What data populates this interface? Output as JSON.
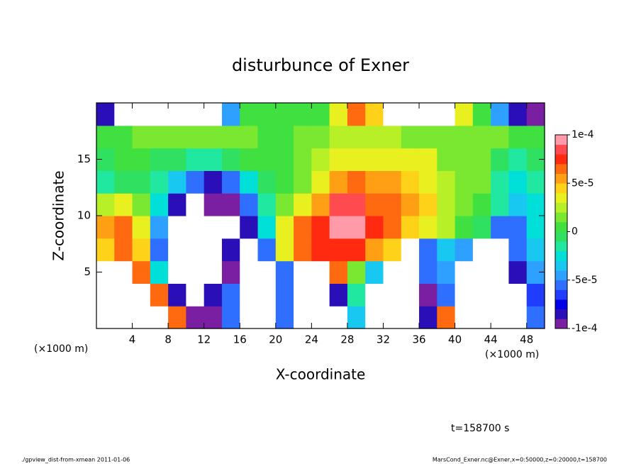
{
  "chart_data": {
    "type": "heatmap",
    "title": "disturbunce of Exner",
    "xlabel": "X-coordinate",
    "ylabel": "Z-coordinate",
    "x_unit": "(×1000 m)",
    "x_unit_right": "(×1000 m)",
    "time_label": "t=158700 s",
    "footer_left": "./gpview_dist-from-xmean   2011-01-06",
    "footer_right": "MarsCond_Exner.nc@Exner,x=0:50000,z=0:20000,t=158700",
    "xlim": [
      0,
      50
    ],
    "ylim": [
      0,
      20
    ],
    "xticks": [
      4,
      8,
      12,
      16,
      20,
      24,
      28,
      32,
      36,
      40,
      44,
      48
    ],
    "yticks": [
      5,
      10,
      15
    ],
    "x": [
      1,
      3,
      5,
      7,
      9,
      11,
      13,
      15,
      17,
      19,
      21,
      23,
      25,
      27,
      29,
      31,
      33,
      35,
      37,
      39,
      41,
      43,
      45,
      47,
      49
    ],
    "y": [
      1,
      3,
      5,
      7,
      9,
      11,
      13,
      15,
      17,
      19
    ],
    "values": [
      [
        -0.00012,
        -0.00012,
        -0.00012,
        -0.00012,
        6e-05,
        -9e-05,
        -9e-05,
        -6e-05,
        -0.00012,
        -0.00012,
        -6e-05,
        -0.00012,
        -0.00012,
        -0.00012,
        -4e-05,
        -0.00012,
        -0.00012,
        -0.00012,
        -8e-05,
        6e-05,
        -0.00012,
        -0.00012,
        -0.00012,
        -0.00012,
        -6e-05
      ],
      [
        -0.00012,
        -0.00012,
        -0.00012,
        6e-05,
        -8e-05,
        -0.00012,
        -8e-05,
        -6e-05,
        -0.00012,
        -0.00012,
        -6e-05,
        -0.00012,
        -0.00012,
        -8e-05,
        -2e-05,
        -0.00012,
        -0.00012,
        -0.00012,
        -0.0001,
        -6e-05,
        -0.00012,
        -0.00012,
        -0.00012,
        -0.00012,
        -7e-05
      ],
      [
        -0.00012,
        -0.00012,
        6e-05,
        -3e-05,
        -0.00012,
        -0.00012,
        -0.00012,
        -9e-05,
        -0.00012,
        -0.00012,
        -6e-05,
        -0.00012,
        -0.00012,
        6e-05,
        1e-05,
        -4e-05,
        -0.00012,
        -0.00012,
        -6e-05,
        -5e-05,
        -0.00012,
        -0.00012,
        -0.00012,
        -8e-05,
        -5e-05
      ],
      [
        4e-05,
        6e-05,
        4e-05,
        -6e-05,
        -0.00012,
        -0.00012,
        -0.00012,
        -8e-05,
        -0.00012,
        -6e-05,
        3e-05,
        6e-05,
        7e-05,
        7e-05,
        7e-05,
        5e-05,
        4e-05,
        -0.00012,
        -6e-05,
        -4e-05,
        -5e-05,
        -0.00012,
        -0.00012,
        -6e-05,
        -4e-05
      ],
      [
        5e-05,
        6e-05,
        3e-05,
        -5e-05,
        -0.00012,
        -0.00012,
        -0.00012,
        -0.00012,
        -8e-05,
        -3e-05,
        3e-05,
        6e-05,
        7e-05,
        9e-05,
        9e-05,
        7e-05,
        6e-05,
        4e-05,
        3e-05,
        2e-05,
        0,
        -1e-05,
        -6e-05,
        -6e-05,
        -3e-05
      ],
      [
        2e-05,
        3e-05,
        1e-05,
        -3e-05,
        -8e-05,
        -0.00012,
        -0.0001,
        -9e-05,
        -6e-05,
        -2e-05,
        1e-05,
        3e-05,
        5e-05,
        8e-05,
        8e-05,
        6e-05,
        6e-05,
        5e-05,
        4e-05,
        2e-05,
        1e-05,
        0,
        -2e-05,
        -4e-05,
        -3e-05
      ],
      [
        -2e-05,
        -1e-05,
        -1e-05,
        -2e-05,
        -4e-05,
        -6e-05,
        -8e-05,
        -6e-05,
        -3e-05,
        -1e-05,
        0,
        1e-05,
        3e-05,
        5e-05,
        6e-05,
        5e-05,
        5e-05,
        4e-05,
        3e-05,
        2e-05,
        1e-05,
        1e-05,
        -2e-05,
        -3e-05,
        -2e-05
      ],
      [
        -1e-05,
        0,
        0,
        -1e-05,
        -1e-05,
        -2e-05,
        -2e-05,
        -1e-05,
        0,
        0,
        0,
        1e-05,
        2e-05,
        3e-05,
        3e-05,
        3e-05,
        3e-05,
        3e-05,
        3e-05,
        1e-05,
        1e-05,
        1e-05,
        -1e-05,
        -2e-05,
        -1e-05
      ],
      [
        0,
        0,
        1e-05,
        1e-05,
        1e-05,
        1e-05,
        1e-05,
        1e-05,
        1e-05,
        0,
        0,
        1e-05,
        1e-05,
        2e-05,
        2e-05,
        2e-05,
        2e-05,
        1e-05,
        1e-05,
        1e-05,
        1e-05,
        1e-05,
        1e-05,
        0,
        0
      ],
      [
        -8e-05,
        -0.00012,
        -0.00012,
        -0.00012,
        -0.00012,
        -0.00012,
        -0.00012,
        -5e-05,
        0,
        0,
        0,
        0,
        0,
        3e-05,
        6e-05,
        4e-05,
        -0.00012,
        -0.00012,
        -0.00012,
        -0.00012,
        3e-05,
        0,
        -5e-05,
        -8e-05,
        -9e-05
      ]
    ],
    "clim": [
      -0.0001,
      0.0001
    ],
    "cticks": [
      {
        "value": 0.0001,
        "label": "1e-4"
      },
      {
        "value": 5e-05,
        "label": "5e-5"
      },
      0,
      {
        "value": -5e-05,
        "label": "-5e-5"
      },
      {
        "value": -0.0001,
        "label": "-1e-4"
      }
    ],
    "colors": [
      "#7a1fa2",
      "#2a0fb8",
      "#0000e6",
      "#1f3cff",
      "#2f6fff",
      "#2ea0ff",
      "#19c8f0",
      "#00e0d8",
      "#20e8a0",
      "#30e060",
      "#40e040",
      "#7ae830",
      "#b8f028",
      "#e8f020",
      "#ffd21a",
      "#ffa014",
      "#ff6a10",
      "#ff2a10",
      "#ff4a50",
      "#ff9aa8"
    ],
    "out_of_range_color": "#ffffff"
  }
}
